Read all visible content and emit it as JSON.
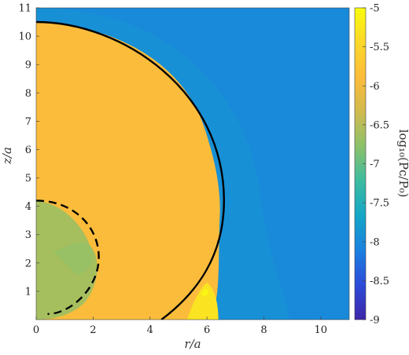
{
  "chart_data": {
    "type": "heatmap",
    "xlabel": "r/a",
    "ylabel": "z/a",
    "xlim": [
      0,
      11
    ],
    "ylim": [
      0,
      11
    ],
    "xticks": [
      "0",
      "2",
      "4",
      "6",
      "8",
      "10"
    ],
    "yticks": [
      "1",
      "2",
      "3",
      "4",
      "5",
      "6",
      "7",
      "8",
      "9",
      "10",
      "11"
    ],
    "colorbar": {
      "label": "log10(Pc/P0)",
      "label_display": "log₁₀(Pᴄ/P₀)",
      "range": [
        -9,
        -5
      ],
      "ticks": [
        "-5",
        "-5.5",
        "-6",
        "-6.5",
        "-7",
        "-7.5",
        "-8",
        "-8.5",
        "-9"
      ],
      "colormap": "parula",
      "colors": [
        "#3e26a8",
        "#2c4bd9",
        "#1a80e0",
        "#14a6c6",
        "#3cbba0",
        "#8bc16a",
        "#d1ba4e",
        "#fcbc3a",
        "#fbd82a",
        "#f9fb0e"
      ]
    },
    "background_value": -8,
    "regions": [
      {
        "name": "bubble interior",
        "value": -5.9
      },
      {
        "name": "inner cavity",
        "value": -6.7
      },
      {
        "name": "shock front",
        "value": -5.3
      },
      {
        "name": "outer shell halo",
        "value": -7.8
      }
    ],
    "bubble_boundary": {
      "r_max": 6.5,
      "z_top": 10.5,
      "z_center": 4.2,
      "r_base": 4.4
    },
    "solid_circle": {
      "r_max": 6.6,
      "z_top": 10.5,
      "z_center": 4.2,
      "r_base": 4.4
    },
    "dashed_circle": {
      "r_max": 2.2,
      "z_top": 4.2,
      "z_center": 2.2,
      "z_bottom": 0.2
    }
  }
}
